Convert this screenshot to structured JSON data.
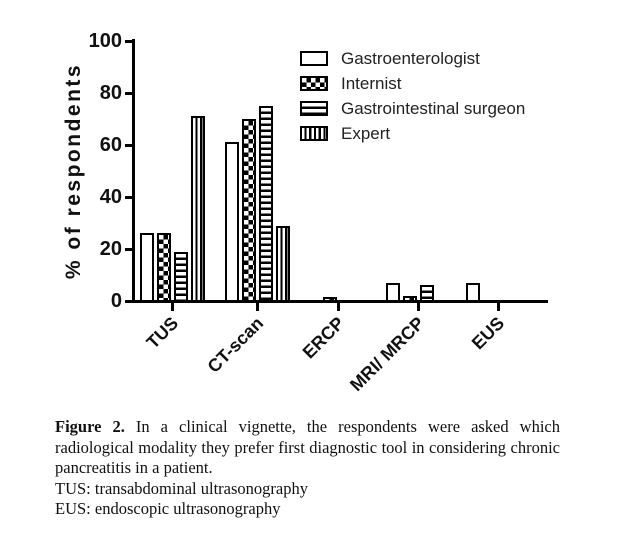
{
  "chart_data": {
    "type": "bar",
    "title": "",
    "xlabel": "",
    "ylabel": "% of respondents",
    "ylim": [
      0,
      100
    ],
    "yticks": [
      0,
      20,
      40,
      60,
      80,
      100
    ],
    "grid": false,
    "legend_position": "top-right",
    "categories": [
      "TUS",
      "CT-scan",
      "ERCP",
      "MRI/ MRCP",
      "EUS"
    ],
    "series": [
      {
        "name": "Gastroenterologist",
        "pattern": "plain",
        "values": [
          26,
          61,
          0,
          7,
          7
        ]
      },
      {
        "name": "Internist",
        "pattern": "checker",
        "values": [
          26,
          70,
          1,
          2,
          0
        ]
      },
      {
        "name": "Gastrointestinal surgeon",
        "pattern": "hlines",
        "values": [
          19,
          75,
          0,
          6,
          0
        ]
      },
      {
        "name": "Expert",
        "pattern": "vlines",
        "values": [
          71,
          29,
          0,
          0,
          0
        ]
      }
    ],
    "colors": {
      "ink": "#000000",
      "background": "#ffffff"
    }
  },
  "caption": {
    "label": "Figure 2.",
    "text": " In a clinical vignette, the respondents were asked which radiological modality they prefer first diagnostic tool in considering chronic pancreatitis in a patient.",
    "footnote_tus": "TUS: transabdominal ultrasonography",
    "footnote_eus": "EUS: endoscopic ultrasonography"
  }
}
